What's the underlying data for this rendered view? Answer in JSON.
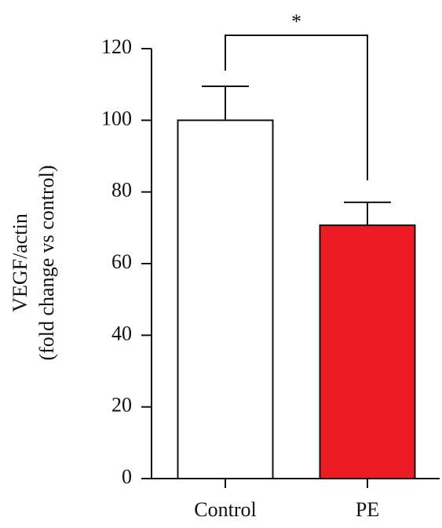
{
  "chart_data": {
    "type": "bar",
    "ylabel": [
      "VEGF/actin",
      "(fold change vs control)"
    ],
    "categories": [
      "Control",
      "PE"
    ],
    "values": [
      100,
      70.7
    ],
    "errors": [
      9.5,
      6.4
    ],
    "colors": [
      "#ffffff",
      "#ed1c24"
    ],
    "annotation": "*",
    "ylim": [
      0,
      120
    ],
    "yticks": [
      0,
      20,
      40,
      60,
      80,
      100,
      120
    ]
  }
}
